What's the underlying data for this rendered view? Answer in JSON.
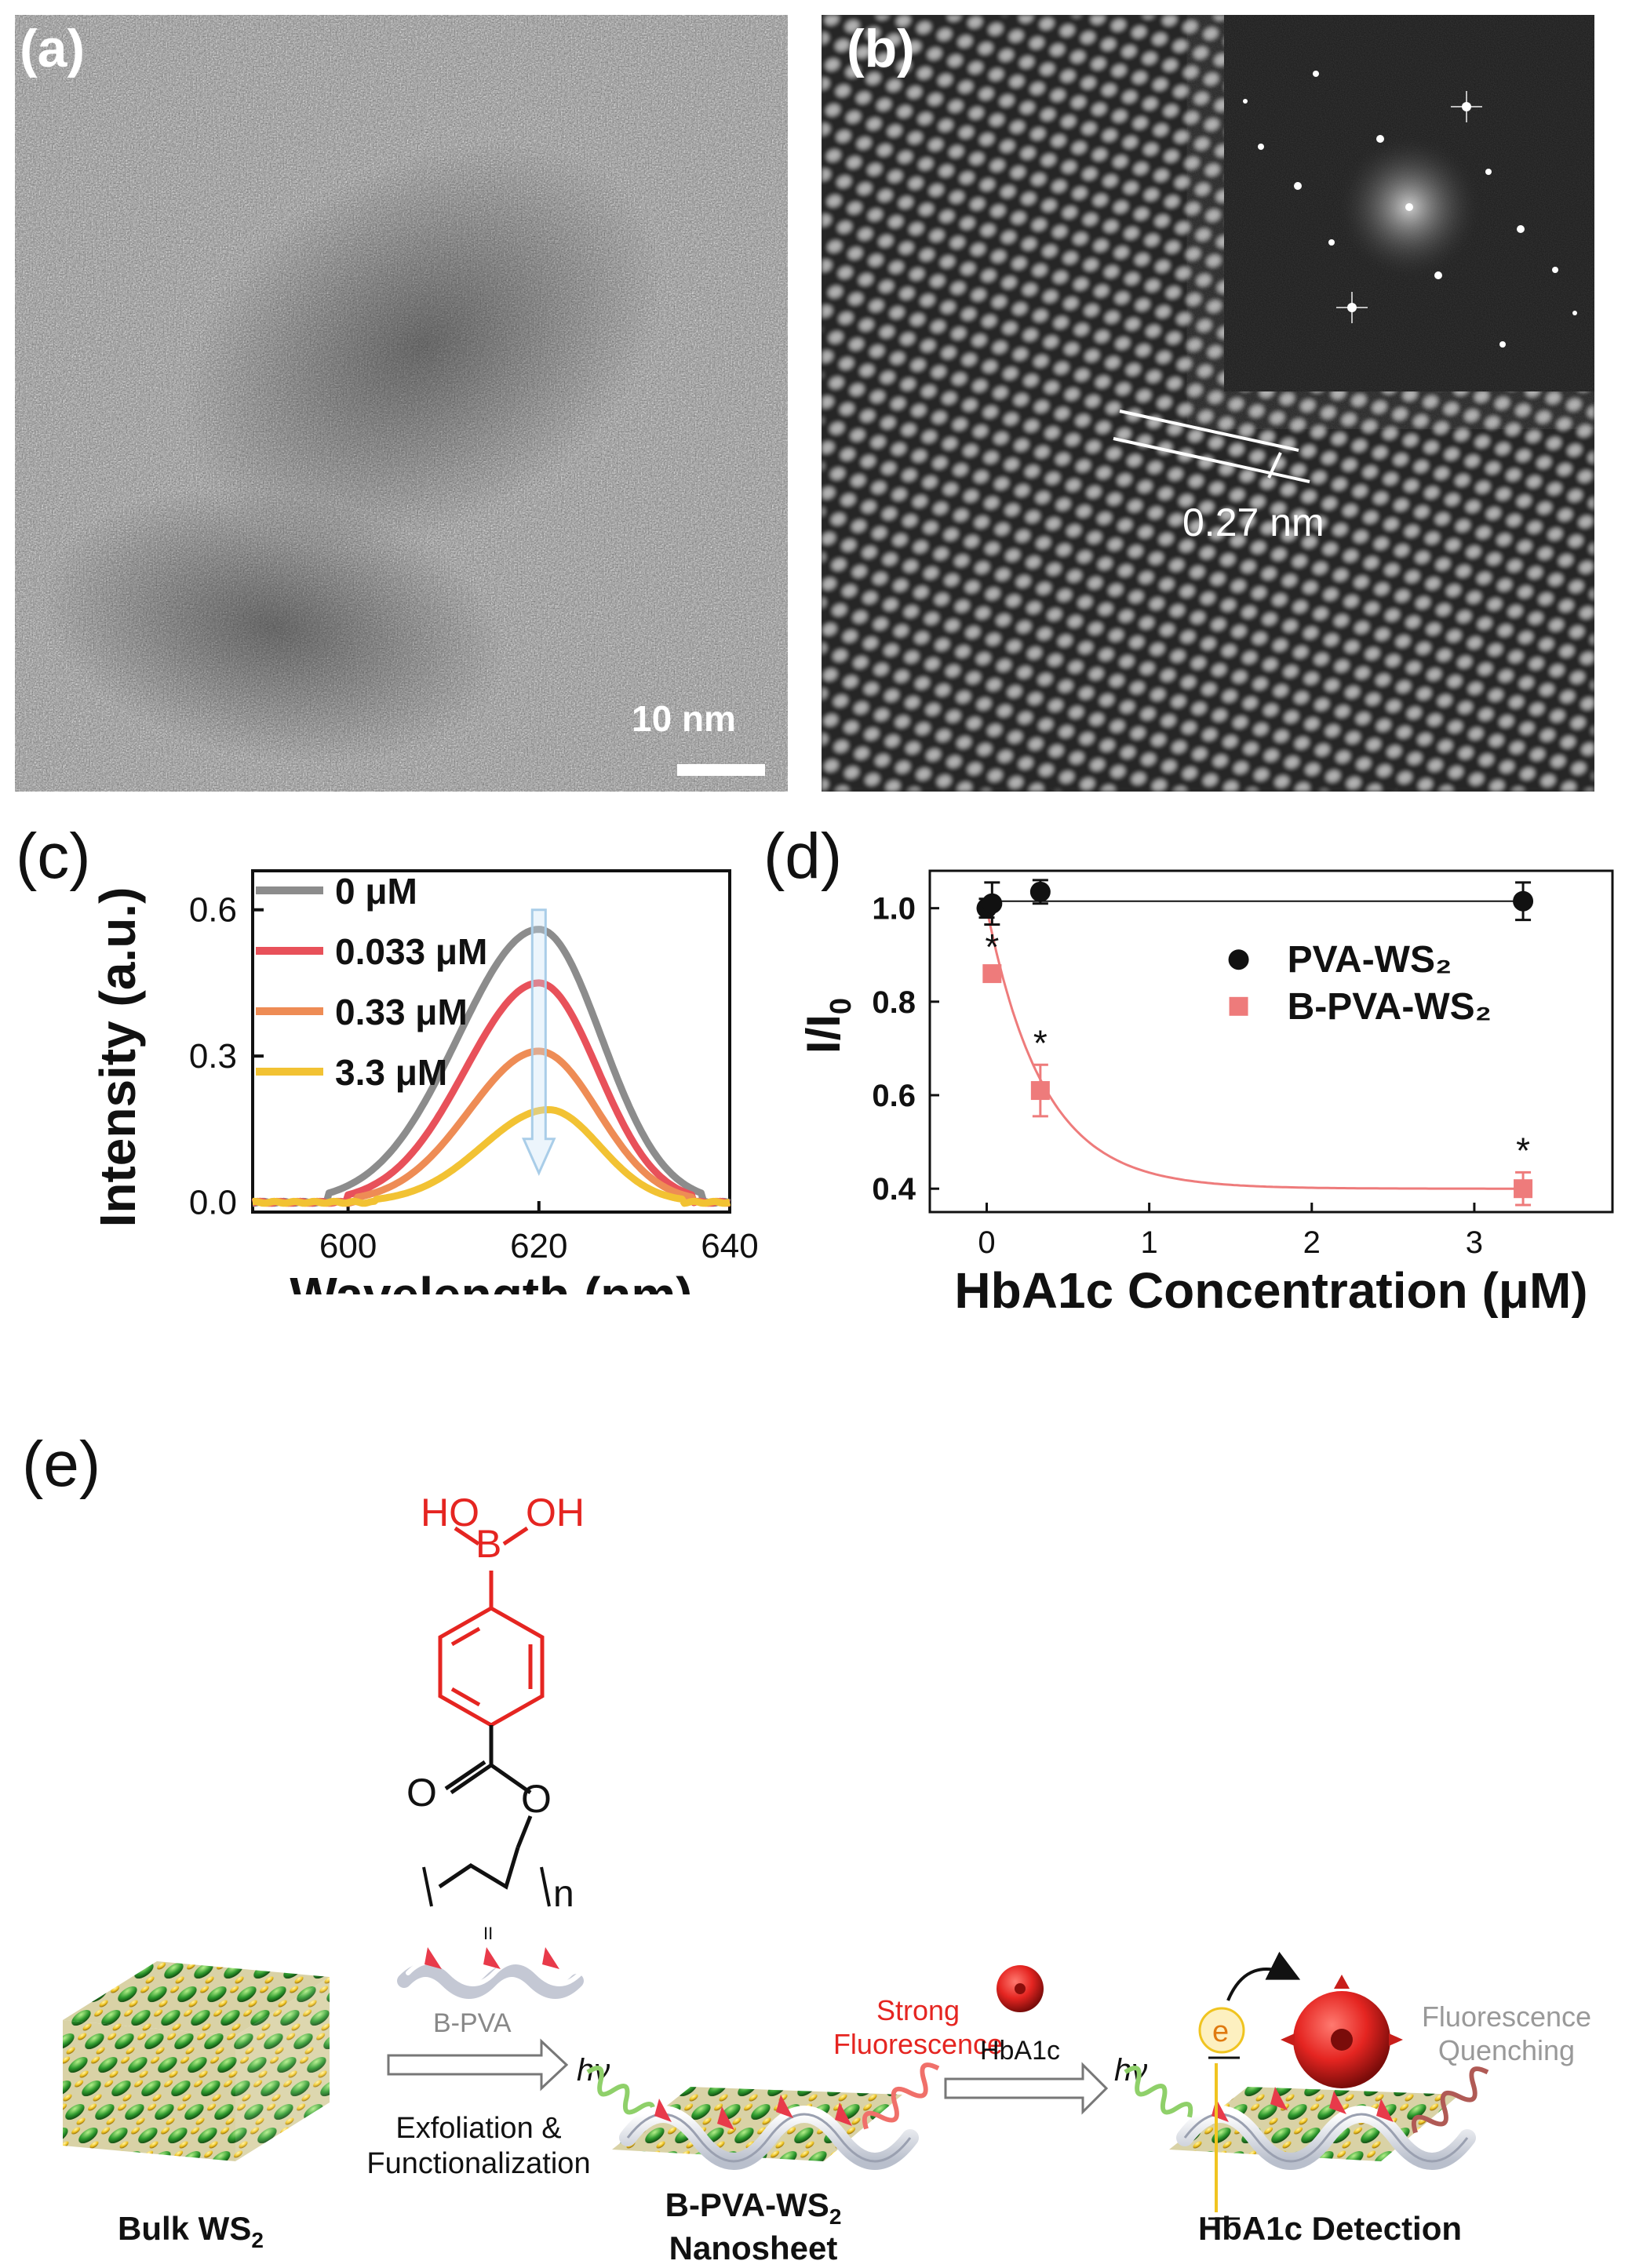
{
  "panels": {
    "a": {
      "label": "(a)",
      "scale_bar": "10 nm"
    },
    "b": {
      "label": "(b)",
      "spacing": "0.27 nm"
    },
    "c": {
      "label": "(c)"
    },
    "d": {
      "label": "(d)"
    },
    "e": {
      "label": "(e)"
    }
  },
  "chart_data": [
    {
      "type": "line",
      "xlabel": "Wavelength (nm)",
      "ylabel": "Intensity (a.u.)",
      "xlim": [
        590,
        640
      ],
      "ylim": [
        -0.02,
        0.68
      ],
      "xticks": [
        "600",
        "620",
        "640"
      ],
      "yticks": [
        "0.0",
        "0.3",
        "0.6"
      ],
      "legend_position": "top-left",
      "series": [
        {
          "name": "0 μM",
          "color": "#8c8c8c",
          "peak_x": 620,
          "peak_y": 0.56,
          "start_x": 598,
          "end_x": 637
        },
        {
          "name": "0.033 μM",
          "color": "#e8515a",
          "peak_x": 620,
          "peak_y": 0.45,
          "start_x": 600,
          "end_x": 636
        },
        {
          "name": "0.33 μM",
          "color": "#ee8c55",
          "peak_x": 620,
          "peak_y": 0.31,
          "start_x": 601,
          "end_x": 636
        },
        {
          "name": "3.3 μM",
          "color": "#f2c233",
          "peak_x": 621,
          "peak_y": 0.19,
          "start_x": 603,
          "end_x": 635
        }
      ]
    },
    {
      "type": "scatter",
      "xlabel": "HbA1c Concentration (μM)",
      "ylabel": "I/I0",
      "xlim": [
        -0.35,
        3.85
      ],
      "ylim": [
        0.35,
        1.08
      ],
      "xticks": [
        "0",
        "1",
        "2",
        "3"
      ],
      "yticks": [
        "0.4",
        "0.6",
        "0.8",
        "1.0"
      ],
      "legend_position": "center-right",
      "series": [
        {
          "name": "PVA-WS₂",
          "color": "#111111",
          "x": [
            0,
            0.033,
            0.33,
            3.3
          ],
          "y": [
            1.0,
            1.01,
            1.035,
            1.015
          ],
          "error": [
            0.02,
            0.045,
            0.025,
            0.04
          ]
        },
        {
          "name": "B-PVA-WS₂",
          "color": "#ee7b7b",
          "x": [
            0.033,
            0.33,
            3.3
          ],
          "y": [
            0.86,
            0.61,
            0.4
          ],
          "error": [
            0.01,
            0.055,
            0.035
          ],
          "significance": [
            "*",
            "*",
            "*"
          ]
        }
      ]
    }
  ],
  "scheme": {
    "chem": {
      "boronic": "HO",
      "boron": "B",
      "oh": "OH",
      "o_left": "O",
      "o_right": "O",
      "n": "n",
      "eq": "II"
    },
    "bulk_label": "Bulk WS",
    "bulk_sub": "2",
    "bpva_label": "B-PVA",
    "step1": [
      "Exfoliation &",
      "Functionalization"
    ],
    "nanosheet_label": "B-PVA-WS",
    "nanosheet_sub": "2",
    "nanosheet_label2": "Nanosheet",
    "hv1": "hν",
    "hv2": "hν",
    "strong": [
      "Strong",
      "Fluorescence"
    ],
    "hba1c": "HbA1c",
    "electron": "e",
    "quench": [
      "Fluorescence",
      "Quenching"
    ],
    "detection": "HbA1c Detection",
    "colors": {
      "red": "#e52521",
      "green": "#2e8b2e",
      "yellow": "#f0c420",
      "grey": "#999999"
    }
  }
}
